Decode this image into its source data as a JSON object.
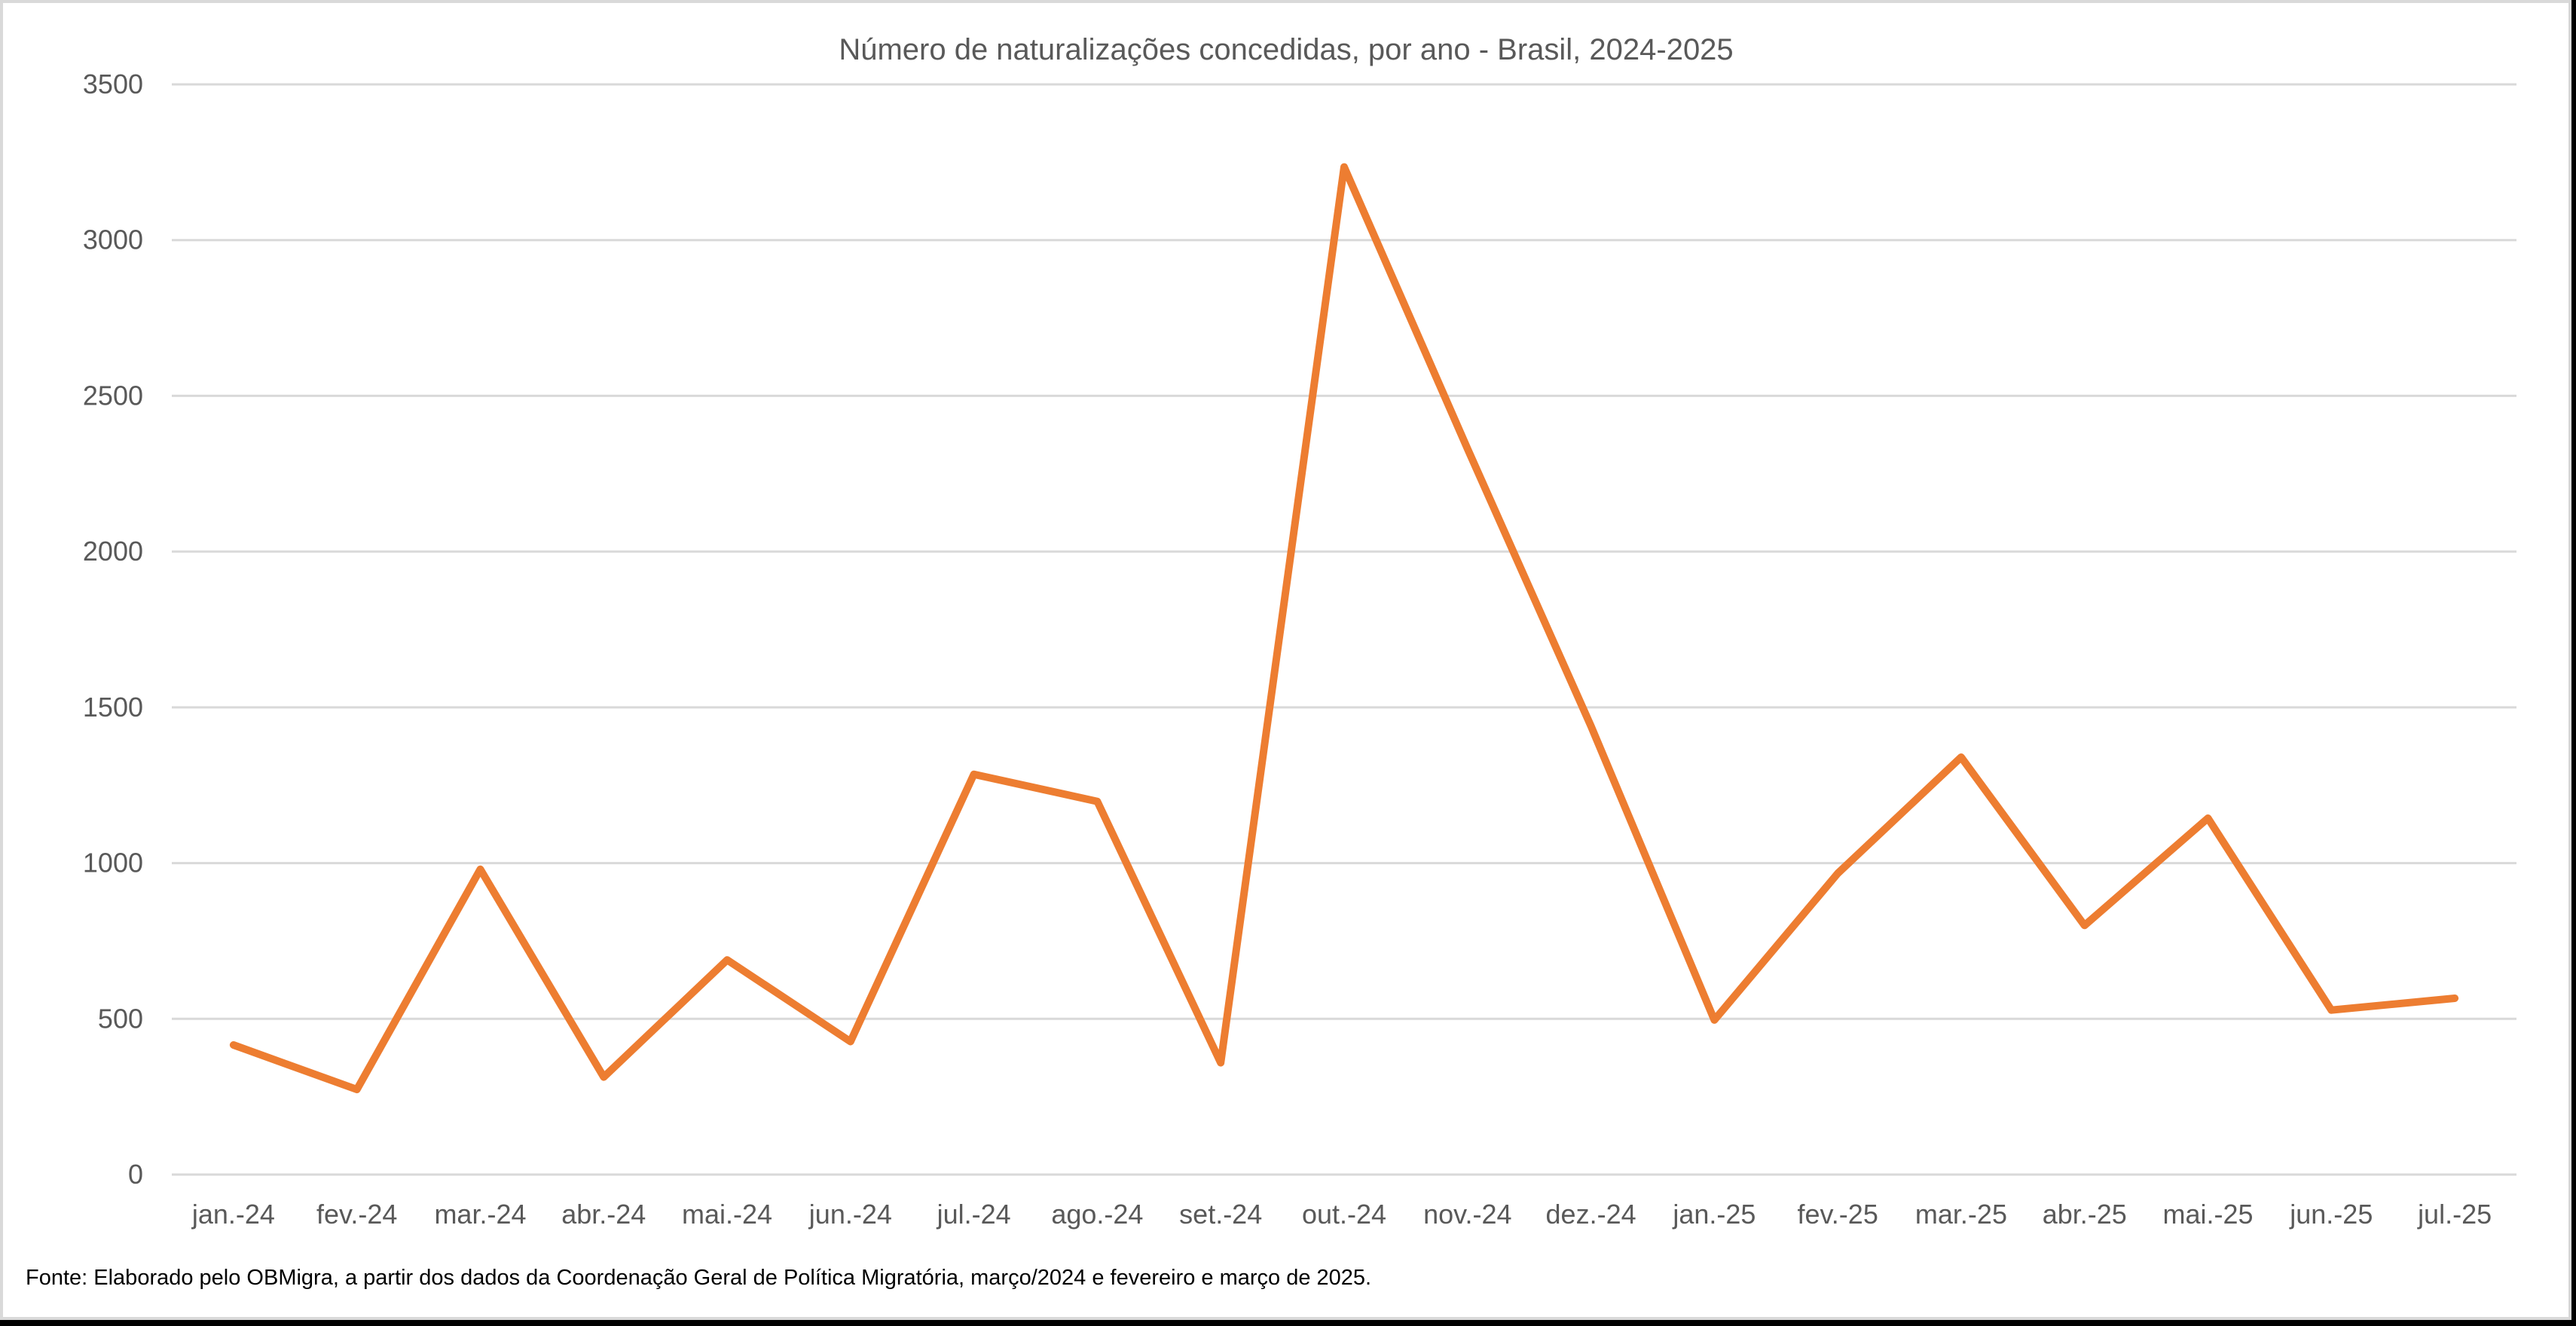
{
  "chart_data": {
    "type": "line",
    "title": "Número de naturalizações concedidas, por ano - Brasil, 2024-2025",
    "xlabel": "",
    "ylabel": "",
    "ylim": [
      0,
      3500
    ],
    "yticks": [
      0,
      500,
      1000,
      1500,
      2000,
      2500,
      3000,
      3500
    ],
    "grid": true,
    "legend": "none",
    "categories": [
      "jan.-24",
      "fev.-24",
      "mar.-24",
      "abr.-24",
      "mai.-24",
      "jun.-24",
      "jul.-24",
      "ago.-24",
      "set.-24",
      "out.-24",
      "nov.-24",
      "dez.-24",
      "jan.-25",
      "fev.-25",
      "mar.-25",
      "abr.-25",
      "mai.-25",
      "jun.-25",
      "jul.-25"
    ],
    "series": [
      {
        "name": "Naturalizações concedidas",
        "color": "#ed7d31",
        "values": [
          416,
          273,
          980,
          313,
          689,
          427,
          1285,
          1198,
          359,
          3235,
          2330,
          1440,
          496,
          967,
          1340,
          800,
          1144,
          528,
          566
        ]
      }
    ],
    "source_note": "Fonte: Elaborado pelo OBMigra, a partir dos dados da Coordenação Geral de Política Migratória, março/2024 e fevereiro e março de 2025."
  },
  "colors": {
    "line": "#ed7d31",
    "gridline": "#d9d9d9",
    "text": "#595959",
    "border": "#d9d9d9"
  }
}
